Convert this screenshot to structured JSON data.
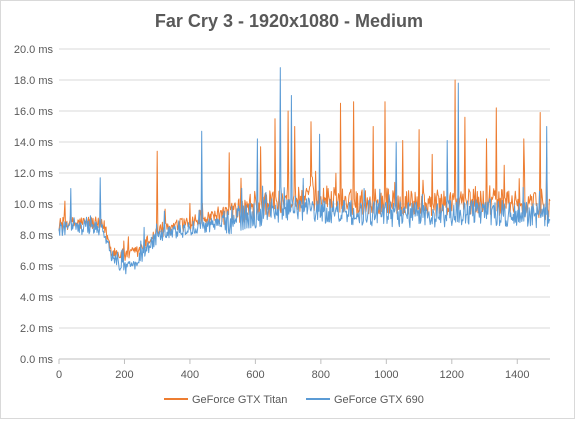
{
  "chart_data": {
    "type": "line",
    "title": "Far Cry 3 - 1920x1080 - Medium",
    "xlabel": "",
    "ylabel": "",
    "xlim": [
      0,
      1500
    ],
    "ylim": [
      0,
      20
    ],
    "x_ticks": [
      0,
      200,
      400,
      600,
      800,
      1000,
      1200,
      1400
    ],
    "y_ticks": [
      0,
      2,
      4,
      6,
      8,
      10,
      12,
      14,
      16,
      18,
      20
    ],
    "y_tick_labels": [
      "0.0 ms",
      "2.0 ms",
      "4.0 ms",
      "6.0 ms",
      "8.0 ms",
      "10.0 ms",
      "12.0 ms",
      "14.0 ms",
      "16.0 ms",
      "18.0 ms",
      "20.0 ms"
    ],
    "grid": true,
    "legend_position": "bottom",
    "series": [
      {
        "name": "GeForce GTX Titan",
        "color": "#ed7d31",
        "baseline": [
          [
            0,
            8.7
          ],
          [
            100,
            8.8
          ],
          [
            140,
            8.5
          ],
          [
            160,
            7.0
          ],
          [
            200,
            6.6
          ],
          [
            240,
            6.9
          ],
          [
            300,
            8.2
          ],
          [
            400,
            8.8
          ],
          [
            500,
            9.2
          ],
          [
            600,
            9.8
          ],
          [
            700,
            10.3
          ],
          [
            800,
            10.4
          ],
          [
            900,
            10.1
          ],
          [
            1000,
            10.2
          ],
          [
            1100,
            10.0
          ],
          [
            1200,
            10.1
          ],
          [
            1300,
            10.2
          ],
          [
            1400,
            10.0
          ],
          [
            1500,
            9.8
          ]
        ],
        "spikes": [
          [
            300,
            13.4
          ],
          [
            520,
            13.3
          ],
          [
            615,
            13.7
          ],
          [
            660,
            15.5
          ],
          [
            700,
            16.0
          ],
          [
            720,
            15.0
          ],
          [
            770,
            15.3
          ],
          [
            860,
            16.5
          ],
          [
            900,
            16.6
          ],
          [
            960,
            15.0
          ],
          [
            995,
            16.6
          ],
          [
            1050,
            14.1
          ],
          [
            1100,
            14.8
          ],
          [
            1140,
            13.2
          ],
          [
            1210,
            18.0
          ],
          [
            1240,
            15.6
          ],
          [
            1305,
            14.2
          ],
          [
            1335,
            16.2
          ],
          [
            1360,
            12.5
          ],
          [
            1420,
            14.2
          ],
          [
            1470,
            15.9
          ],
          [
            1490,
            13.0
          ]
        ]
      },
      {
        "name": "GeForce GTX 690",
        "color": "#5b9bd5",
        "baseline": [
          [
            0,
            8.4
          ],
          [
            100,
            8.5
          ],
          [
            140,
            8.2
          ],
          [
            160,
            6.6
          ],
          [
            200,
            5.9
          ],
          [
            240,
            6.3
          ],
          [
            300,
            7.9
          ],
          [
            400,
            8.4
          ],
          [
            500,
            8.8
          ],
          [
            600,
            9.3
          ],
          [
            700,
            9.8
          ],
          [
            800,
            9.6
          ],
          [
            900,
            9.4
          ],
          [
            1000,
            9.4
          ],
          [
            1100,
            9.3
          ],
          [
            1200,
            9.4
          ],
          [
            1300,
            9.5
          ],
          [
            1400,
            9.3
          ],
          [
            1500,
            9.2
          ]
        ],
        "spikes": [
          [
            35,
            11.0
          ],
          [
            125,
            11.7
          ],
          [
            435,
            14.7
          ],
          [
            605,
            14.2
          ],
          [
            675,
            18.8
          ],
          [
            710,
            17.0
          ],
          [
            795,
            14.5
          ],
          [
            1030,
            14.0
          ],
          [
            1185,
            14.1
          ],
          [
            1220,
            17.8
          ],
          [
            1490,
            15.0
          ]
        ]
      }
    ]
  }
}
